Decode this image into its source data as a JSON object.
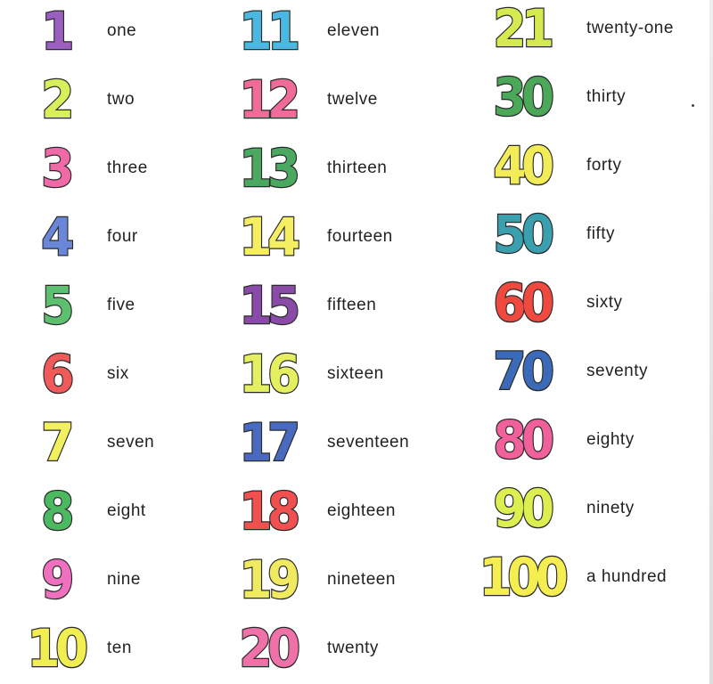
{
  "columns": [
    [
      {
        "numeral": "1",
        "word": "one",
        "color": "#9b5fc0"
      },
      {
        "numeral": "2",
        "word": "two",
        "color": "#d8ee5a"
      },
      {
        "numeral": "3",
        "word": "three",
        "color": "#f06aa8"
      },
      {
        "numeral": "4",
        "word": "four",
        "color": "#6a86d8"
      },
      {
        "numeral": "5",
        "word": "five",
        "color": "#5cc070"
      },
      {
        "numeral": "6",
        "word": "six",
        "color": "#f05a5a"
      },
      {
        "numeral": "7",
        "word": "seven",
        "color": "#f2f060"
      },
      {
        "numeral": "8",
        "word": "eight",
        "color": "#4cb860"
      },
      {
        "numeral": "9",
        "word": "nine",
        "color": "#f070c0"
      },
      {
        "numeral": "10",
        "word": "ten",
        "color": "#f0ee50"
      }
    ],
    [
      {
        "numeral": "11",
        "word": "eleven",
        "color": "#4ab8e0"
      },
      {
        "numeral": "12",
        "word": "twelve",
        "color": "#f06a9a"
      },
      {
        "numeral": "13",
        "word": "thirteen",
        "color": "#4aa860"
      },
      {
        "numeral": "14",
        "word": "fourteen",
        "color": "#f4ee60"
      },
      {
        "numeral": "15",
        "word": "fifteen",
        "color": "#8a4aa8"
      },
      {
        "numeral": "16",
        "word": "sixteen",
        "color": "#e4f060"
      },
      {
        "numeral": "17",
        "word": "seventeen",
        "color": "#4a6ac0"
      },
      {
        "numeral": "18",
        "word": "eighteen",
        "color": "#f05050"
      },
      {
        "numeral": "19",
        "word": "nineteen",
        "color": "#f0ea60"
      },
      {
        "numeral": "20",
        "word": "twenty",
        "color": "#f070a8"
      }
    ],
    [
      {
        "numeral": "21",
        "word": "twenty-one",
        "color": "#d4ea50"
      },
      {
        "numeral": "30",
        "word": "thirty",
        "color": "#4aa858"
      },
      {
        "numeral": "40",
        "word": "forty",
        "color": "#f2ec58"
      },
      {
        "numeral": "50",
        "word": "fifty",
        "color": "#3aa0b0"
      },
      {
        "numeral": "60",
        "word": "sixty",
        "color": "#f04a40"
      },
      {
        "numeral": "70",
        "word": "seventy",
        "color": "#3a6ab8"
      },
      {
        "numeral": "80",
        "word": "eighty",
        "color": "#f0609a"
      },
      {
        "numeral": "90",
        "word": "ninety",
        "color": "#dcee50"
      },
      {
        "numeral": "100",
        "word": "a hundred",
        "color": "#f4ee50"
      }
    ]
  ]
}
